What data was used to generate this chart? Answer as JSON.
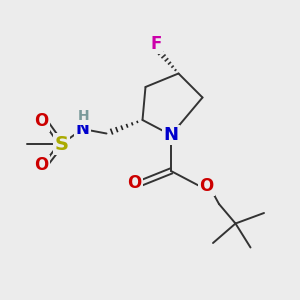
{
  "background_color": "#ececec",
  "figure_size": [
    3.0,
    3.0
  ],
  "dpi": 100,
  "atoms": {
    "S": {
      "color": "#aaaa00",
      "fontsize": 13
    },
    "N": {
      "color": "#0000cc",
      "fontsize": 12
    },
    "O": {
      "color": "#cc0000",
      "fontsize": 12
    },
    "F": {
      "color": "#cc00aa",
      "fontsize": 12
    },
    "H": {
      "color": "#7a9a9a",
      "fontsize": 10
    }
  },
  "bond_color": "#333333",
  "bond_width": 1.4
}
